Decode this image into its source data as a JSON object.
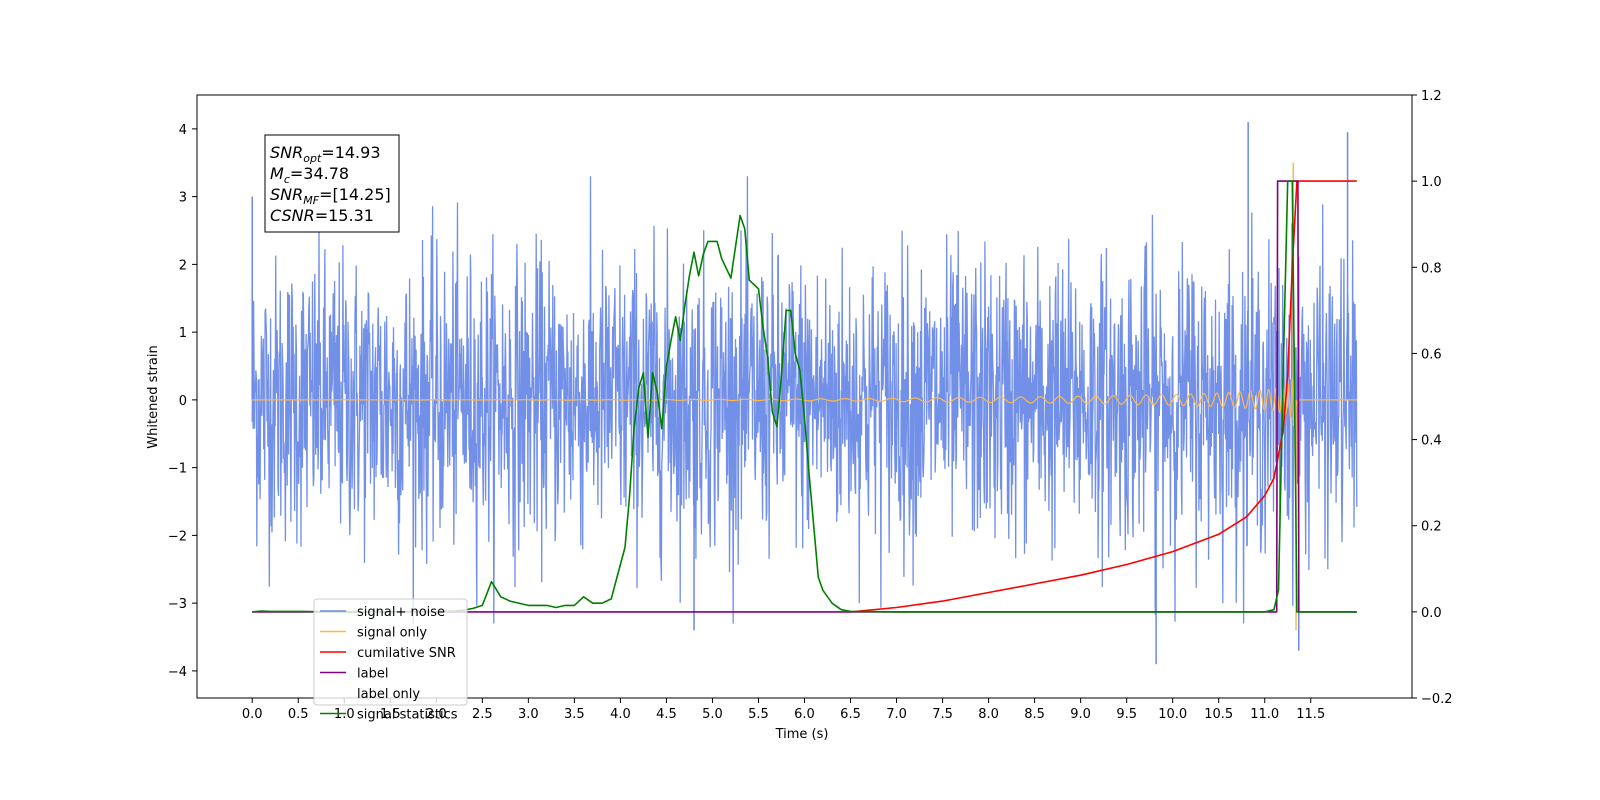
{
  "chart_data": {
    "type": "line",
    "title": "",
    "xlabel": "Time (s)",
    "ylabel": "Whitened strain",
    "xlim": [
      -0.6,
      12.6
    ],
    "ylim": [
      -4.4,
      4.5
    ],
    "y2lim": [
      -0.2,
      1.2
    ],
    "x_ticks": [
      "0.0",
      "0.5",
      "1.0",
      "1.5",
      "2.0",
      "2.5",
      "3.0",
      "3.5",
      "4.0",
      "4.5",
      "5.0",
      "5.5",
      "6.0",
      "6.5",
      "7.0",
      "7.5",
      "8.0",
      "8.5",
      "9.0",
      "9.5",
      "10.0",
      "10.5",
      "11.0",
      "11.5"
    ],
    "y_ticks": [
      "4",
      "3",
      "2",
      "1",
      "0",
      "−1",
      "−2",
      "−3",
      "−4"
    ],
    "y2_ticks": [
      "1.2",
      "1.0",
      "0.8",
      "0.6",
      "0.4",
      "0.2",
      "0.0",
      "−0.2"
    ],
    "grid": false,
    "legend_position": "lower-left",
    "annotation": {
      "lines": [
        {
          "sym": "SNR",
          "sub": "opt",
          "val": "=14.93"
        },
        {
          "sym": "M",
          "sub": "c",
          "val": "=34.78"
        },
        {
          "sym": "SNR",
          "sub": "MF",
          "val": "=[14.25]"
        },
        {
          "sym": "CSNR",
          "sub": "",
          "val": "=15.31"
        }
      ]
    },
    "series": [
      {
        "name": "signal+ noise",
        "axis": "left",
        "color": "#6a8ae6",
        "description_only": true,
        "x_range": [
          0.0,
          12.0
        ],
        "typical_amplitude": 1.4,
        "extremes": [
          {
            "x": 0.0,
            "y": 3.0
          },
          {
            "x": 4.8,
            "y": -3.4
          },
          {
            "x": 9.82,
            "y": -3.9
          },
          {
            "x": 10.82,
            "y": 4.1
          },
          {
            "x": 11.37,
            "y": -3.7
          },
          {
            "x": 11.9,
            "y": 3.95
          }
        ]
      },
      {
        "name": "signal only",
        "axis": "left",
        "color": "#ffb74d",
        "x_range": [
          0.0,
          12.0
        ],
        "merger_time": 11.32,
        "peak": 3.5,
        "trough": -3.4
      },
      {
        "name": "cumilative SNR",
        "axis": "right",
        "color": "#ff0000",
        "x": [
          6.5,
          7.0,
          7.5,
          8.0,
          8.5,
          9.0,
          9.5,
          10.0,
          10.5,
          10.8,
          11.0,
          11.1,
          11.2,
          11.25,
          11.3,
          11.35,
          11.4,
          12.0
        ],
        "y": [
          0.0,
          0.01,
          0.025,
          0.045,
          0.065,
          0.085,
          0.11,
          0.14,
          0.18,
          0.22,
          0.27,
          0.31,
          0.42,
          0.55,
          0.8,
          1.0,
          1.0,
          1.0
        ]
      },
      {
        "name": "label",
        "axis": "right",
        "color": "#800080",
        "x": [
          0.0,
          11.13,
          11.14,
          11.36,
          11.37,
          12.0
        ],
        "y": [
          0.0,
          0.0,
          1.0,
          1.0,
          0.0,
          0.0
        ]
      },
      {
        "name": "label only",
        "axis": "right",
        "color": "#ffffff",
        "hidden_line": true,
        "x": [],
        "y": []
      },
      {
        "name": "signal statistics",
        "axis": "right",
        "color": "#008000",
        "x": [
          0.0,
          0.1,
          0.2,
          0.5,
          1.0,
          1.5,
          2.0,
          2.2,
          2.3,
          2.4,
          2.5,
          2.6,
          2.7,
          2.8,
          3.0,
          3.2,
          3.3,
          3.4,
          3.5,
          3.6,
          3.7,
          3.8,
          3.9,
          4.0,
          4.05,
          4.1,
          4.15,
          4.2,
          4.25,
          4.3,
          4.35,
          4.4,
          4.45,
          4.5,
          4.55,
          4.6,
          4.65,
          4.7,
          4.75,
          4.8,
          4.85,
          4.9,
          4.95,
          5.05,
          5.1,
          5.2,
          5.3,
          5.35,
          5.4,
          5.45,
          5.5,
          5.55,
          5.6,
          5.65,
          5.7,
          5.75,
          5.8,
          5.85,
          5.9,
          5.95,
          6.0,
          6.05,
          6.1,
          6.15,
          6.2,
          6.3,
          6.4,
          6.5,
          7.0,
          8.0,
          9.0,
          10.0,
          11.0,
          11.1,
          11.15,
          11.2,
          11.25,
          11.3,
          11.35,
          11.4,
          11.45,
          12.0
        ],
        "y": [
          0.0,
          0.002,
          0.001,
          0.001,
          0.0,
          0.0,
          0.001,
          0.002,
          0.004,
          0.008,
          0.015,
          0.07,
          0.035,
          0.025,
          0.015,
          0.015,
          0.01,
          0.015,
          0.015,
          0.035,
          0.02,
          0.02,
          0.03,
          0.11,
          0.15,
          0.27,
          0.43,
          0.52,
          0.555,
          0.405,
          0.555,
          0.51,
          0.425,
          0.57,
          0.63,
          0.685,
          0.63,
          0.71,
          0.78,
          0.835,
          0.78,
          0.83,
          0.86,
          0.86,
          0.82,
          0.775,
          0.92,
          0.89,
          0.77,
          0.76,
          0.75,
          0.66,
          0.59,
          0.465,
          0.43,
          0.55,
          0.7,
          0.7,
          0.6,
          0.56,
          0.45,
          0.32,
          0.2,
          0.08,
          0.05,
          0.02,
          0.005,
          0.001,
          0.0,
          0.0,
          0.0,
          0.0,
          0.0,
          0.005,
          0.05,
          0.55,
          1.0,
          1.0,
          0.0,
          0.0,
          0.0,
          0.0
        ]
      }
    ]
  }
}
